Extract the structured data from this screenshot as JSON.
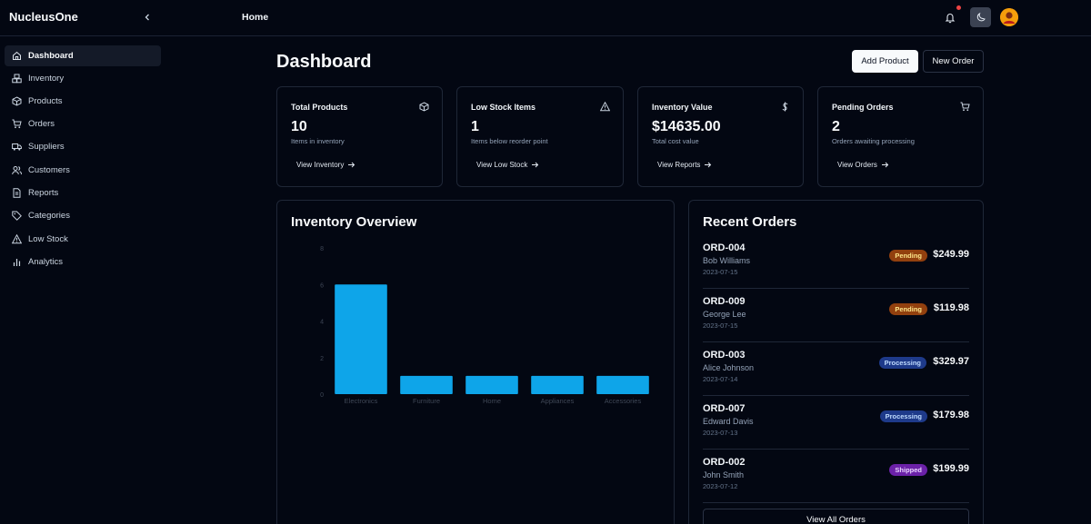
{
  "app": {
    "brand": "NucleusOne",
    "breadcrumb": "Home"
  },
  "sidebar": {
    "items": [
      {
        "label": "Dashboard",
        "icon": "home-icon"
      },
      {
        "label": "Inventory",
        "icon": "boxes-icon"
      },
      {
        "label": "Products",
        "icon": "package-icon"
      },
      {
        "label": "Orders",
        "icon": "cart-icon"
      },
      {
        "label": "Suppliers",
        "icon": "truck-icon"
      },
      {
        "label": "Customers",
        "icon": "users-icon"
      },
      {
        "label": "Reports",
        "icon": "file-icon"
      },
      {
        "label": "Categories",
        "icon": "tag-icon"
      },
      {
        "label": "Low Stock",
        "icon": "alert-icon"
      },
      {
        "label": "Analytics",
        "icon": "bar-chart-icon"
      }
    ]
  },
  "header": {
    "title": "Dashboard",
    "add_product": "Add Product",
    "new_order": "New Order"
  },
  "cards": [
    {
      "title": "Total Products",
      "icon": "package-icon",
      "value": "10",
      "sub": "Items in inventory",
      "link": "View Inventory"
    },
    {
      "title": "Low Stock Items",
      "icon": "alert-icon",
      "value": "1",
      "sub": "Items below reorder point",
      "link": "View Low Stock"
    },
    {
      "title": "Inventory Value",
      "icon": "dollar-icon",
      "value": "$14635.00",
      "sub": "Total cost value",
      "link": "View Reports"
    },
    {
      "title": "Pending Orders",
      "icon": "cart-icon",
      "value": "2",
      "sub": "Orders awaiting processing",
      "link": "View Orders"
    }
  ],
  "inventory_overview": {
    "title": "Inventory Overview"
  },
  "chart_data": {
    "type": "bar",
    "title": "Inventory Overview",
    "categories": [
      "Electronics",
      "Furniture",
      "Home",
      "Appliances",
      "Accessories"
    ],
    "values": [
      6,
      1,
      1,
      1,
      1
    ],
    "ylim": [
      0,
      8
    ],
    "yticks": [
      "0",
      "2",
      "4",
      "6",
      "8"
    ],
    "grid": false,
    "color": "#0ea5e9"
  },
  "recent_orders": {
    "title": "Recent Orders",
    "view_all": "View All Orders",
    "orders": [
      {
        "id": "ORD-004",
        "name": "Bob Williams",
        "date": "2023-07-15",
        "status": "Pending",
        "price": "$249.99"
      },
      {
        "id": "ORD-009",
        "name": "George Lee",
        "date": "2023-07-15",
        "status": "Pending",
        "price": "$119.98"
      },
      {
        "id": "ORD-003",
        "name": "Alice Johnson",
        "date": "2023-07-14",
        "status": "Processing",
        "price": "$329.97"
      },
      {
        "id": "ORD-007",
        "name": "Edward Davis",
        "date": "2023-07-13",
        "status": "Processing",
        "price": "$179.98"
      },
      {
        "id": "ORD-002",
        "name": "John Smith",
        "date": "2023-07-12",
        "status": "Shipped",
        "price": "$199.99"
      }
    ]
  },
  "status_colors": {
    "Pending": {
      "bg": "#92400e",
      "fg": "#fde68a"
    },
    "Processing": {
      "bg": "#1e3a8a",
      "fg": "#bfdbfe"
    },
    "Shipped": {
      "bg": "#6b21a8",
      "fg": "#e9d5ff"
    }
  }
}
